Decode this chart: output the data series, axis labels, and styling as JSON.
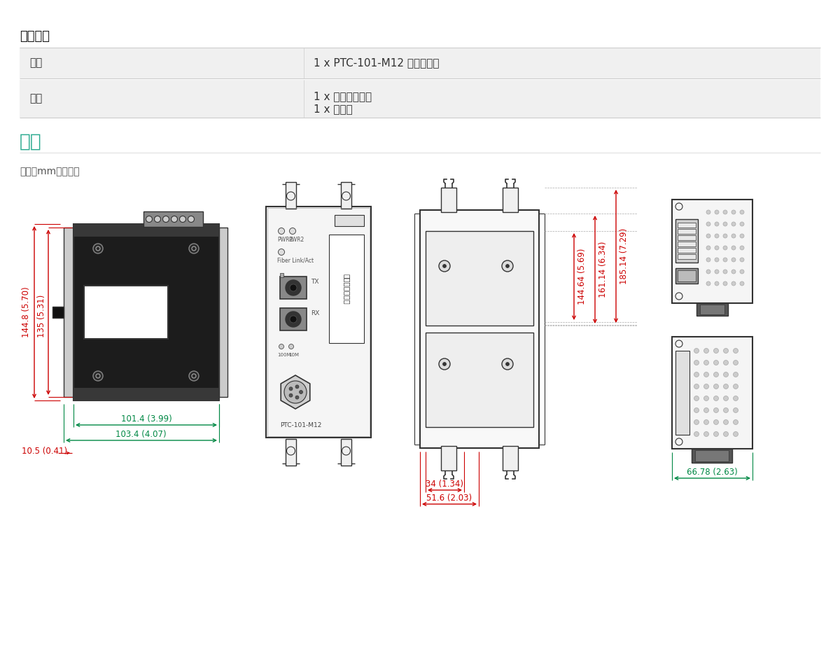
{
  "bg_color": "#ffffff",
  "table_header": "包装清单",
  "table_bg": "#f0f0f0",
  "table_border": "#cccccc",
  "table_rows": [
    {
      "label": "设备",
      "value": "1 x PTC-101-M12 系列转换器"
    },
    {
      "label": "文件",
      "value1": "1 x 快速安装指南",
      "value2": "1 x 保修卡"
    }
  ],
  "table_col_split": 0.355,
  "section_title": "尺寸",
  "section_title_color": "#2aaa8f",
  "unit_text": "单位：mm（英寸）",
  "dim_color_green": "#008844",
  "dim_color_red": "#cc0000",
  "drawing_line_color": "#333333",
  "annotations": {
    "h1": "144.8 (5.70)",
    "h2": "135 (5.31)",
    "w1": "101.4 (3.99)",
    "w2": "103.4 (4.07)",
    "w3": "10.5 (0.41)",
    "h3": "144.64 (5.69)",
    "h4": "161.14 (6.34)",
    "h5": "185.14 (7.29)",
    "w4": "34 (1.34)",
    "w5": "51.6 (2.03)",
    "w6": "66.78 (2.63)"
  }
}
